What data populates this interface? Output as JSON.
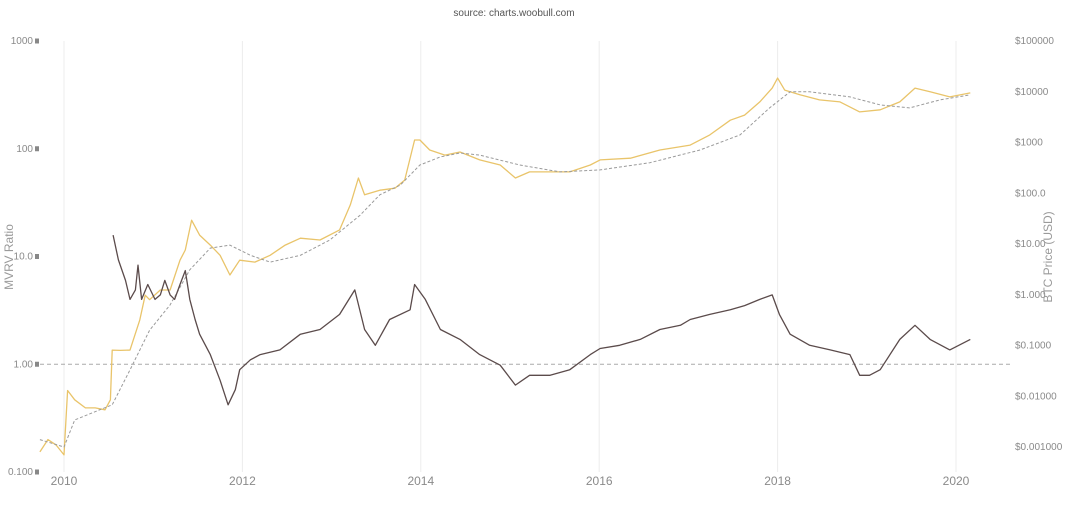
{
  "chart_data": {
    "type": "line",
    "title": "source: charts.woobull.com",
    "ylabel_left": "MVRV Ratio",
    "ylabel_right": "BTC Price (USD)",
    "xlim": [
      2009.73,
      2020.6
    ],
    "ylim_left": [
      0.1,
      1000
    ],
    "ylim_right": [
      0.0003,
      100000
    ],
    "y_scale": "log",
    "grid": "vertical",
    "x_ticks": [
      "2010",
      "2012",
      "2014",
      "2016",
      "2018",
      "2020"
    ],
    "x_tick_values": [
      2010,
      2012,
      2014,
      2016,
      2018,
      2020
    ],
    "left_ticks": [
      {
        "v": 1000,
        "label": "1000"
      },
      {
        "v": 100,
        "label": "100"
      },
      {
        "v": 10,
        "label": "10.0"
      },
      {
        "v": 1,
        "label": "1.00"
      },
      {
        "v": 0.1,
        "label": "0.100"
      }
    ],
    "right_ticks": [
      {
        "v": 100000,
        "label": "$100000"
      },
      {
        "v": 10000,
        "label": "$10000"
      },
      {
        "v": 1000,
        "label": "$1000"
      },
      {
        "v": 100,
        "label": "$100.0"
      },
      {
        "v": 10,
        "label": "$10.00"
      },
      {
        "v": 1,
        "label": "$1.000"
      },
      {
        "v": 0.1,
        "label": "$0.1000"
      },
      {
        "v": 0.01,
        "label": "$0.01000"
      },
      {
        "v": 0.001,
        "label": "$0.001000"
      }
    ],
    "reference_line_left": 1,
    "series": [
      {
        "axis": "right",
        "color": "#e9c46a",
        "dashed": false,
        "points": [
          [
            2009.73,
            0.0008
          ],
          [
            2009.82,
            0.0014
          ],
          [
            2009.91,
            0.0011
          ],
          [
            2010.0,
            0.0007
          ],
          [
            2010.04,
            0.013
          ],
          [
            2010.12,
            0.0085
          ],
          [
            2010.24,
            0.0059
          ],
          [
            2010.35,
            0.0059
          ],
          [
            2010.46,
            0.0054
          ],
          [
            2010.52,
            0.0085
          ],
          [
            2010.54,
            0.081
          ],
          [
            2010.63,
            0.08
          ],
          [
            2010.74,
            0.081
          ],
          [
            2010.85,
            0.32
          ],
          [
            2010.91,
            0.98
          ],
          [
            2010.96,
            0.8
          ],
          [
            2011.08,
            1.24
          ],
          [
            2011.19,
            1.24
          ],
          [
            2011.3,
            4.8
          ],
          [
            2011.36,
            7.6
          ],
          [
            2011.43,
            29.5
          ],
          [
            2011.52,
            15
          ],
          [
            2011.64,
            9.5
          ],
          [
            2011.75,
            6.0
          ],
          [
            2011.86,
            2.45
          ],
          [
            2011.97,
            4.8
          ],
          [
            2012.14,
            4.4
          ],
          [
            2012.31,
            6.0
          ],
          [
            2012.48,
            9.5
          ],
          [
            2012.65,
            13
          ],
          [
            2012.87,
            12
          ],
          [
            2013.09,
            19
          ],
          [
            2013.21,
            59
          ],
          [
            2013.3,
            200
          ],
          [
            2013.37,
            93
          ],
          [
            2013.54,
            115
          ],
          [
            2013.71,
            126
          ],
          [
            2013.82,
            182
          ],
          [
            2013.93,
            1120
          ],
          [
            2013.99,
            1120
          ],
          [
            2014.1,
            710
          ],
          [
            2014.27,
            565
          ],
          [
            2014.44,
            650
          ],
          [
            2014.66,
            455
          ],
          [
            2014.89,
            360
          ],
          [
            2015.06,
            200
          ],
          [
            2015.22,
            263
          ],
          [
            2015.45,
            263
          ],
          [
            2015.67,
            263
          ],
          [
            2015.9,
            360
          ],
          [
            2016.01,
            455
          ],
          [
            2016.35,
            490
          ],
          [
            2016.68,
            710
          ],
          [
            2017.02,
            890
          ],
          [
            2017.24,
            1410
          ],
          [
            2017.47,
            2750
          ],
          [
            2017.63,
            3470
          ],
          [
            2017.8,
            6300
          ],
          [
            2017.94,
            11800
          ],
          [
            2018.0,
            18600
          ],
          [
            2018.08,
            10800
          ],
          [
            2018.25,
            8700
          ],
          [
            2018.47,
            6900
          ],
          [
            2018.7,
            6300
          ],
          [
            2018.92,
            4000
          ],
          [
            2019.15,
            4400
          ],
          [
            2019.37,
            6300
          ],
          [
            2019.54,
            11800
          ],
          [
            2019.71,
            10000
          ],
          [
            2019.93,
            7900
          ],
          [
            2020.16,
            9500
          ]
        ]
      },
      {
        "axis": "right",
        "color": "#9a9a9a",
        "dashed": true,
        "points": [
          [
            2009.73,
            0.0014
          ],
          [
            2010.0,
            0.001
          ],
          [
            2010.12,
            0.0034
          ],
          [
            2010.4,
            0.0054
          ],
          [
            2010.54,
            0.0068
          ],
          [
            2010.74,
            0.033
          ],
          [
            2010.96,
            0.2
          ],
          [
            2011.19,
            0.63
          ],
          [
            2011.41,
            3.1
          ],
          [
            2011.64,
            8.3
          ],
          [
            2011.86,
            9.5
          ],
          [
            2012.09,
            6
          ],
          [
            2012.31,
            4.4
          ],
          [
            2012.65,
            6
          ],
          [
            2012.98,
            12
          ],
          [
            2013.32,
            37
          ],
          [
            2013.54,
            93
          ],
          [
            2013.77,
            145
          ],
          [
            2013.99,
            360
          ],
          [
            2014.22,
            520
          ],
          [
            2014.44,
            620
          ],
          [
            2014.66,
            565
          ],
          [
            2015.11,
            360
          ],
          [
            2015.56,
            263
          ],
          [
            2016.01,
            288
          ],
          [
            2016.57,
            400
          ],
          [
            2017.13,
            710
          ],
          [
            2017.58,
            1410
          ],
          [
            2017.91,
            4800
          ],
          [
            2018.14,
            10000
          ],
          [
            2018.36,
            10000
          ],
          [
            2018.81,
            7900
          ],
          [
            2019.15,
            5500
          ],
          [
            2019.48,
            4800
          ],
          [
            2019.82,
            6900
          ],
          [
            2020.16,
            8700
          ]
        ]
      },
      {
        "axis": "left",
        "color": "#5b4b4b",
        "dashed": false,
        "points": [
          [
            2010.55,
            15.8
          ],
          [
            2010.61,
            9.3
          ],
          [
            2010.69,
            6.0
          ],
          [
            2010.74,
            4.0
          ],
          [
            2010.8,
            4.9
          ],
          [
            2010.83,
            8.3
          ],
          [
            2010.87,
            4.0
          ],
          [
            2010.94,
            5.5
          ],
          [
            2011.02,
            4.0
          ],
          [
            2011.08,
            4.4
          ],
          [
            2011.13,
            6.0
          ],
          [
            2011.19,
            4.4
          ],
          [
            2011.24,
            4.0
          ],
          [
            2011.3,
            5.5
          ],
          [
            2011.36,
            7.4
          ],
          [
            2011.41,
            4.0
          ],
          [
            2011.47,
            2.6
          ],
          [
            2011.52,
            1.9
          ],
          [
            2011.64,
            1.23
          ],
          [
            2011.75,
            0.71
          ],
          [
            2011.84,
            0.42
          ],
          [
            2011.92,
            0.58
          ],
          [
            2011.97,
            0.89
          ],
          [
            2012.09,
            1.1
          ],
          [
            2012.2,
            1.23
          ],
          [
            2012.42,
            1.36
          ],
          [
            2012.65,
            1.9
          ],
          [
            2012.87,
            2.1
          ],
          [
            2013.09,
            2.9
          ],
          [
            2013.26,
            4.9
          ],
          [
            2013.37,
            2.1
          ],
          [
            2013.49,
            1.5
          ],
          [
            2013.65,
            2.6
          ],
          [
            2013.88,
            3.2
          ],
          [
            2013.93,
            5.5
          ],
          [
            2014.05,
            4.0
          ],
          [
            2014.22,
            2.1
          ],
          [
            2014.44,
            1.7
          ],
          [
            2014.66,
            1.23
          ],
          [
            2014.89,
            0.98
          ],
          [
            2015.06,
            0.64
          ],
          [
            2015.22,
            0.79
          ],
          [
            2015.45,
            0.79
          ],
          [
            2015.67,
            0.89
          ],
          [
            2015.9,
            1.23
          ],
          [
            2016.01,
            1.4
          ],
          [
            2016.23,
            1.5
          ],
          [
            2016.46,
            1.7
          ],
          [
            2016.68,
            2.1
          ],
          [
            2016.91,
            2.3
          ],
          [
            2017.02,
            2.6
          ],
          [
            2017.24,
            2.9
          ],
          [
            2017.47,
            3.2
          ],
          [
            2017.63,
            3.5
          ],
          [
            2017.8,
            4.0
          ],
          [
            2017.94,
            4.4
          ],
          [
            2018.02,
            2.9
          ],
          [
            2018.14,
            1.9
          ],
          [
            2018.36,
            1.5
          ],
          [
            2018.59,
            1.36
          ],
          [
            2018.81,
            1.23
          ],
          [
            2018.92,
            0.79
          ],
          [
            2019.03,
            0.79
          ],
          [
            2019.15,
            0.89
          ],
          [
            2019.37,
            1.7
          ],
          [
            2019.54,
            2.3
          ],
          [
            2019.71,
            1.7
          ],
          [
            2019.93,
            1.36
          ],
          [
            2020.16,
            1.7
          ]
        ]
      }
    ]
  }
}
